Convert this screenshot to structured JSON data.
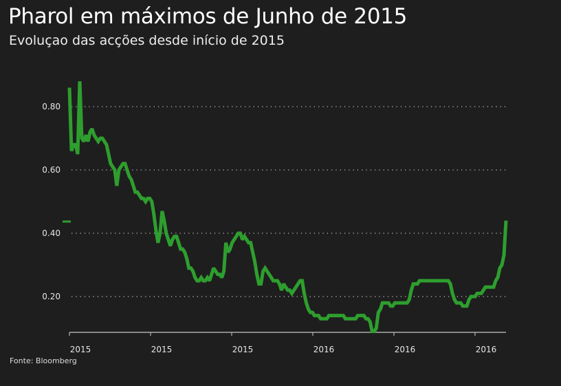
{
  "title": "Pharol em máximos de Junho de 2015",
  "subtitle": "Evoluçao das acções desde início de 2015",
  "source": "Fonte: Bloomberg",
  "chart_data": {
    "type": "line",
    "title": "Pharol em máximos de Junho de 2015",
    "subtitle": "Evoluçao das acções desde início de 2015",
    "xlabel": "",
    "ylabel": "",
    "ylim": [
      0.087,
      0.9
    ],
    "y_ticks": [
      0.2,
      0.4,
      0.6,
      0.8
    ],
    "y_tick_labels": [
      "0.20",
      "0.40",
      "0.60",
      "0.80"
    ],
    "x_tick_labels": [
      "2015",
      "2015",
      "2015",
      "2016",
      "2016",
      "2016"
    ],
    "grid": "horizontal dotted",
    "legend": "swatch only, left of plot",
    "line_color": "#2e9e2e",
    "background": "#1e1e1e",
    "series": [
      {
        "values": [
          0.86,
          0.66,
          0.68,
          0.68,
          0.65,
          0.88,
          0.7,
          0.69,
          0.71,
          0.69,
          0.72,
          0.73,
          0.71,
          0.7,
          0.69,
          0.7,
          0.7,
          0.69,
          0.68,
          0.65,
          0.62,
          0.61,
          0.6,
          0.55,
          0.6,
          0.61,
          0.62,
          0.62,
          0.6,
          0.58,
          0.57,
          0.55,
          0.53,
          0.53,
          0.52,
          0.51,
          0.51,
          0.5,
          0.51,
          0.51,
          0.5,
          0.46,
          0.41,
          0.37,
          0.4,
          0.47,
          0.44,
          0.4,
          0.38,
          0.36,
          0.38,
          0.39,
          0.39,
          0.37,
          0.35,
          0.35,
          0.34,
          0.32,
          0.29,
          0.29,
          0.28,
          0.26,
          0.25,
          0.25,
          0.26,
          0.25,
          0.25,
          0.26,
          0.25,
          0.27,
          0.29,
          0.28,
          0.27,
          0.27,
          0.26,
          0.28,
          0.37,
          0.34,
          0.35,
          0.37,
          0.38,
          0.39,
          0.4,
          0.4,
          0.38,
          0.39,
          0.38,
          0.37,
          0.37,
          0.34,
          0.31,
          0.27,
          0.24,
          0.24,
          0.28,
          0.29,
          0.28,
          0.27,
          0.26,
          0.25,
          0.25,
          0.25,
          0.24,
          0.22,
          0.24,
          0.23,
          0.22,
          0.22,
          0.21,
          0.22,
          0.23,
          0.24,
          0.25,
          0.25,
          0.21,
          0.18,
          0.16,
          0.15,
          0.15,
          0.14,
          0.14,
          0.14,
          0.13,
          0.13,
          0.13,
          0.13,
          0.14,
          0.14,
          0.14,
          0.14,
          0.14,
          0.14,
          0.14,
          0.14,
          0.13,
          0.13,
          0.13,
          0.13,
          0.13,
          0.13,
          0.14,
          0.14,
          0.14,
          0.14,
          0.13,
          0.13,
          0.12,
          0.09,
          0.09,
          0.1,
          0.15,
          0.16,
          0.18,
          0.18,
          0.18,
          0.18,
          0.17,
          0.17,
          0.18,
          0.18,
          0.18,
          0.18,
          0.18,
          0.18,
          0.18,
          0.19,
          0.22,
          0.24,
          0.24,
          0.24,
          0.25,
          0.25,
          0.25,
          0.25,
          0.25,
          0.25,
          0.25,
          0.25,
          0.25,
          0.25,
          0.25,
          0.25,
          0.25,
          0.25,
          0.25,
          0.24,
          0.21,
          0.19,
          0.18,
          0.18,
          0.18,
          0.17,
          0.17,
          0.17,
          0.19,
          0.2,
          0.2,
          0.2,
          0.21,
          0.21,
          0.21,
          0.22,
          0.23,
          0.23,
          0.23,
          0.23,
          0.23,
          0.25,
          0.26,
          0.29,
          0.3,
          0.33,
          0.44
        ]
      }
    ]
  }
}
